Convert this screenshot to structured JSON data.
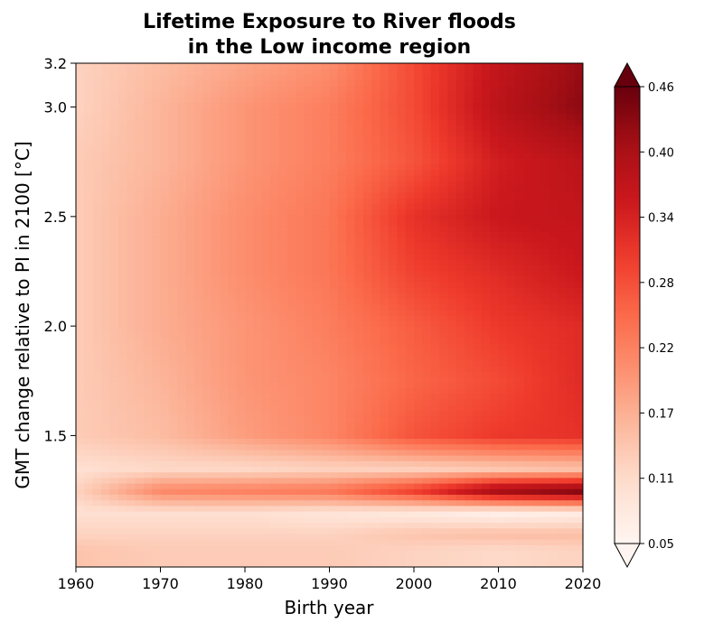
{
  "chart_data": {
    "type": "heatmap",
    "title": [
      "Lifetime Exposure to River floods",
      "in the Low income region"
    ],
    "xlabel": "Birth year",
    "ylabel": "GMT change relative to PI in 2100 [°C]",
    "x_ticks": [
      1960,
      1970,
      1980,
      1990,
      2000,
      2010,
      2020
    ],
    "y_ticks": [
      "1.5",
      "2.0",
      "2.5",
      "3.0",
      "3.2"
    ],
    "xlim": [
      1960,
      2020
    ],
    "ylim": [
      0.9,
      3.2
    ],
    "colorbar": {
      "ticks": [
        "0.05",
        "0.11",
        "0.17",
        "0.22",
        "0.28",
        "0.34",
        "0.40",
        "0.46"
      ],
      "range": [
        0.05,
        0.46
      ],
      "extend": "both",
      "colormap": "Reds"
    },
    "birth_years": [
      1960,
      1970,
      1980,
      1990,
      2000,
      2010,
      2020
    ],
    "gmt_levels": [
      0.98,
      1.05,
      1.15,
      1.25,
      1.35,
      1.5,
      1.75,
      2.0,
      2.25,
      2.5,
      2.75,
      3.0,
      3.2
    ],
    "values": [
      [
        0.14,
        0.13,
        0.13,
        0.13,
        0.12,
        0.11,
        0.12
      ],
      [
        0.12,
        0.12,
        0.12,
        0.12,
        0.14,
        0.15,
        0.15
      ],
      [
        0.1,
        0.1,
        0.1,
        0.09,
        0.08,
        0.06,
        0.07
      ],
      [
        0.12,
        0.22,
        0.23,
        0.24,
        0.31,
        0.42,
        0.45
      ],
      [
        0.1,
        0.11,
        0.11,
        0.12,
        0.12,
        0.13,
        0.14
      ],
      [
        0.13,
        0.15,
        0.19,
        0.22,
        0.28,
        0.31,
        0.32
      ],
      [
        0.13,
        0.16,
        0.2,
        0.22,
        0.26,
        0.29,
        0.33
      ],
      [
        0.13,
        0.17,
        0.2,
        0.23,
        0.27,
        0.31,
        0.33
      ],
      [
        0.13,
        0.17,
        0.21,
        0.24,
        0.3,
        0.33,
        0.36
      ],
      [
        0.13,
        0.17,
        0.21,
        0.24,
        0.32,
        0.36,
        0.37
      ],
      [
        0.13,
        0.16,
        0.2,
        0.23,
        0.28,
        0.35,
        0.38
      ],
      [
        0.12,
        0.16,
        0.2,
        0.23,
        0.29,
        0.38,
        0.43
      ],
      [
        0.12,
        0.15,
        0.18,
        0.21,
        0.29,
        0.37,
        0.42
      ]
    ]
  }
}
